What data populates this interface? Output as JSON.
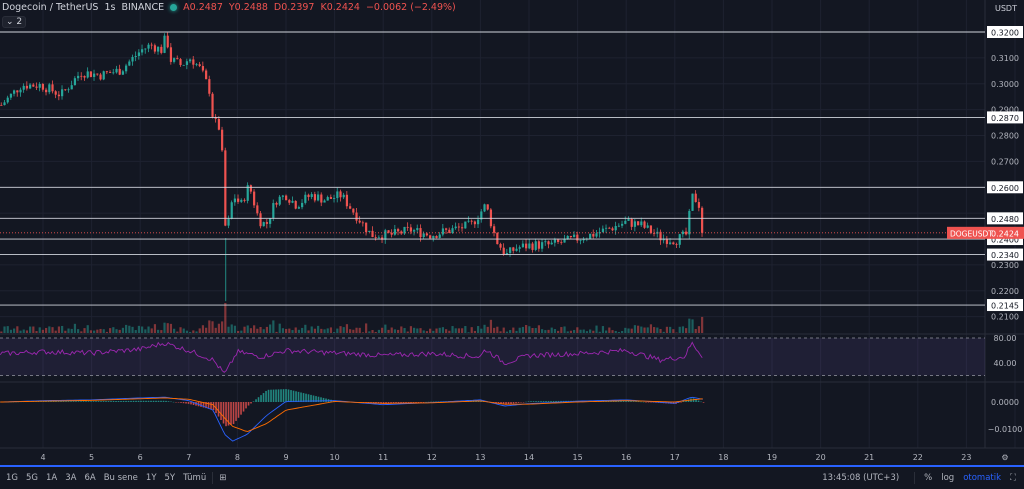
{
  "header": {
    "symbol_title": "Dogecoin / TetherUS",
    "interval": "1s",
    "exchange": "BINANCE",
    "open": "A0.2487",
    "high": "Y0.2488",
    "low": "D0.2397",
    "close": "K0.2424",
    "change": "−0.0062 (−2.49%)",
    "collapse_label": "2",
    "status_color": "#26a69a"
  },
  "colors": {
    "up": "#26a69a",
    "down": "#ef5350",
    "rsi": "#9c27b0",
    "macd": "#2962ff",
    "signal": "#ff6d00",
    "level_line": "#d1d4dc",
    "background": "#131722"
  },
  "price_axis": {
    "unit": "USDT",
    "ticks": [
      "0.3100",
      "0.3000",
      "0.2900",
      "0.2800",
      "0.2700",
      "0.2300",
      "0.2200",
      "0.2100"
    ],
    "current_symbol_label": "DOGEUSDT",
    "current_price": "0.2424"
  },
  "rsi_axis": {
    "ticks": [
      "80.00",
      "40.00"
    ]
  },
  "macd_axis": {
    "ticks": [
      "0.0000",
      "−0.0100"
    ]
  },
  "time_axis": {
    "ticks": [
      "4",
      "5",
      "6",
      "7",
      "8",
      "9",
      "10",
      "11",
      "12",
      "13",
      "14",
      "15",
      "16",
      "17",
      "18",
      "19",
      "20",
      "21",
      "22",
      "23"
    ]
  },
  "toolbar": {
    "ranges": [
      "1G",
      "5G",
      "1A",
      "3A",
      "6A",
      "Bu sene",
      "1Y",
      "5Y",
      "Tümü"
    ],
    "clock": "13:45:08 (UTC+3)",
    "percent": "%",
    "log": "log",
    "auto": "otomatik"
  },
  "chart_data": {
    "type": "candlestick",
    "title": "Dogecoin / TetherUS",
    "xlabel": "",
    "ylabel": "USDT",
    "xlim": [
      3.1,
      23.5
    ],
    "ylim": [
      0.205,
      0.3225
    ],
    "horizontal_levels": [
      0.32,
      0.287,
      0.26,
      0.248,
      0.24,
      0.234,
      0.2145
    ],
    "current_price": 0.2424,
    "price_path": {
      "x": [
        3.12,
        3.53,
        3.94,
        4.35,
        4.76,
        5.17,
        5.58,
        6.0,
        6.2,
        6.41,
        6.51,
        6.61,
        6.82,
        7.02,
        7.23,
        7.4,
        7.48,
        7.64,
        7.74,
        7.89,
        8.05,
        8.22,
        8.42,
        8.57,
        8.77,
        8.98,
        9.19,
        9.49,
        9.8,
        10.11,
        10.42,
        10.73,
        11.14,
        11.55,
        11.96,
        12.37,
        12.79,
        13.09,
        13.3,
        13.51,
        13.71,
        14.02,
        14.43,
        14.84,
        15.26,
        15.67,
        15.98,
        16.28,
        16.7,
        17.0,
        17.21,
        17.35,
        17.48,
        17.58
      ],
      "close": [
        0.2918,
        0.2995,
        0.2995,
        0.2957,
        0.3045,
        0.3034,
        0.3053,
        0.313,
        0.315,
        0.313,
        0.3185,
        0.3092,
        0.3072,
        0.31,
        0.3053,
        0.2976,
        0.286,
        0.2821,
        0.2404,
        0.257,
        0.2532,
        0.2609,
        0.2474,
        0.2454,
        0.2551,
        0.257,
        0.2532,
        0.257,
        0.2551,
        0.257,
        0.2493,
        0.2416,
        0.2416,
        0.2435,
        0.2416,
        0.2435,
        0.2454,
        0.2532,
        0.2396,
        0.2338,
        0.2365,
        0.2377,
        0.2377,
        0.2396,
        0.2416,
        0.2443,
        0.2466,
        0.2454,
        0.2404,
        0.2396,
        0.2416,
        0.257,
        0.2532,
        0.2424
      ]
    },
    "rsi": {
      "bands": [
        80,
        20
      ],
      "x": [
        3.12,
        4,
        5,
        6,
        6.5,
        7,
        7.5,
        7.74,
        8,
        8.5,
        9,
        10,
        11,
        12,
        13,
        13.1,
        13.5,
        14,
        15,
        16,
        16.7,
        17.2,
        17.35,
        17.58
      ],
      "values": [
        55,
        58,
        56,
        62,
        72,
        60,
        45,
        22,
        58,
        50,
        60,
        56,
        52,
        55,
        50,
        62,
        40,
        52,
        55,
        60,
        45,
        50,
        72,
        50
      ]
    },
    "macd": {
      "x": [
        3.12,
        4,
        5,
        6,
        6.5,
        7,
        7.5,
        7.74,
        7.9,
        8.2,
        8.6,
        9,
        10,
        11,
        12,
        13,
        13.5,
        14,
        15,
        16,
        17,
        17.35,
        17.58
      ],
      "macd": [
        0.0,
        0.0005,
        0.0008,
        0.0015,
        0.0018,
        0.0005,
        -0.003,
        -0.012,
        -0.0145,
        -0.012,
        -0.005,
        0.0002,
        0.0005,
        -0.001,
        -0.0002,
        0.0008,
        -0.0015,
        -0.0006,
        0.0003,
        0.0008,
        -0.0005,
        0.0018,
        0.001
      ],
      "signal": [
        0.0,
        0.0003,
        0.0006,
        0.0012,
        0.0015,
        0.001,
        -0.001,
        -0.006,
        -0.009,
        -0.011,
        -0.008,
        -0.003,
        0.0002,
        -0.0005,
        -0.0003,
        0.0004,
        -0.0008,
        -0.0008,
        0.0,
        0.0005,
        0.0,
        0.0008,
        0.0012
      ]
    }
  }
}
